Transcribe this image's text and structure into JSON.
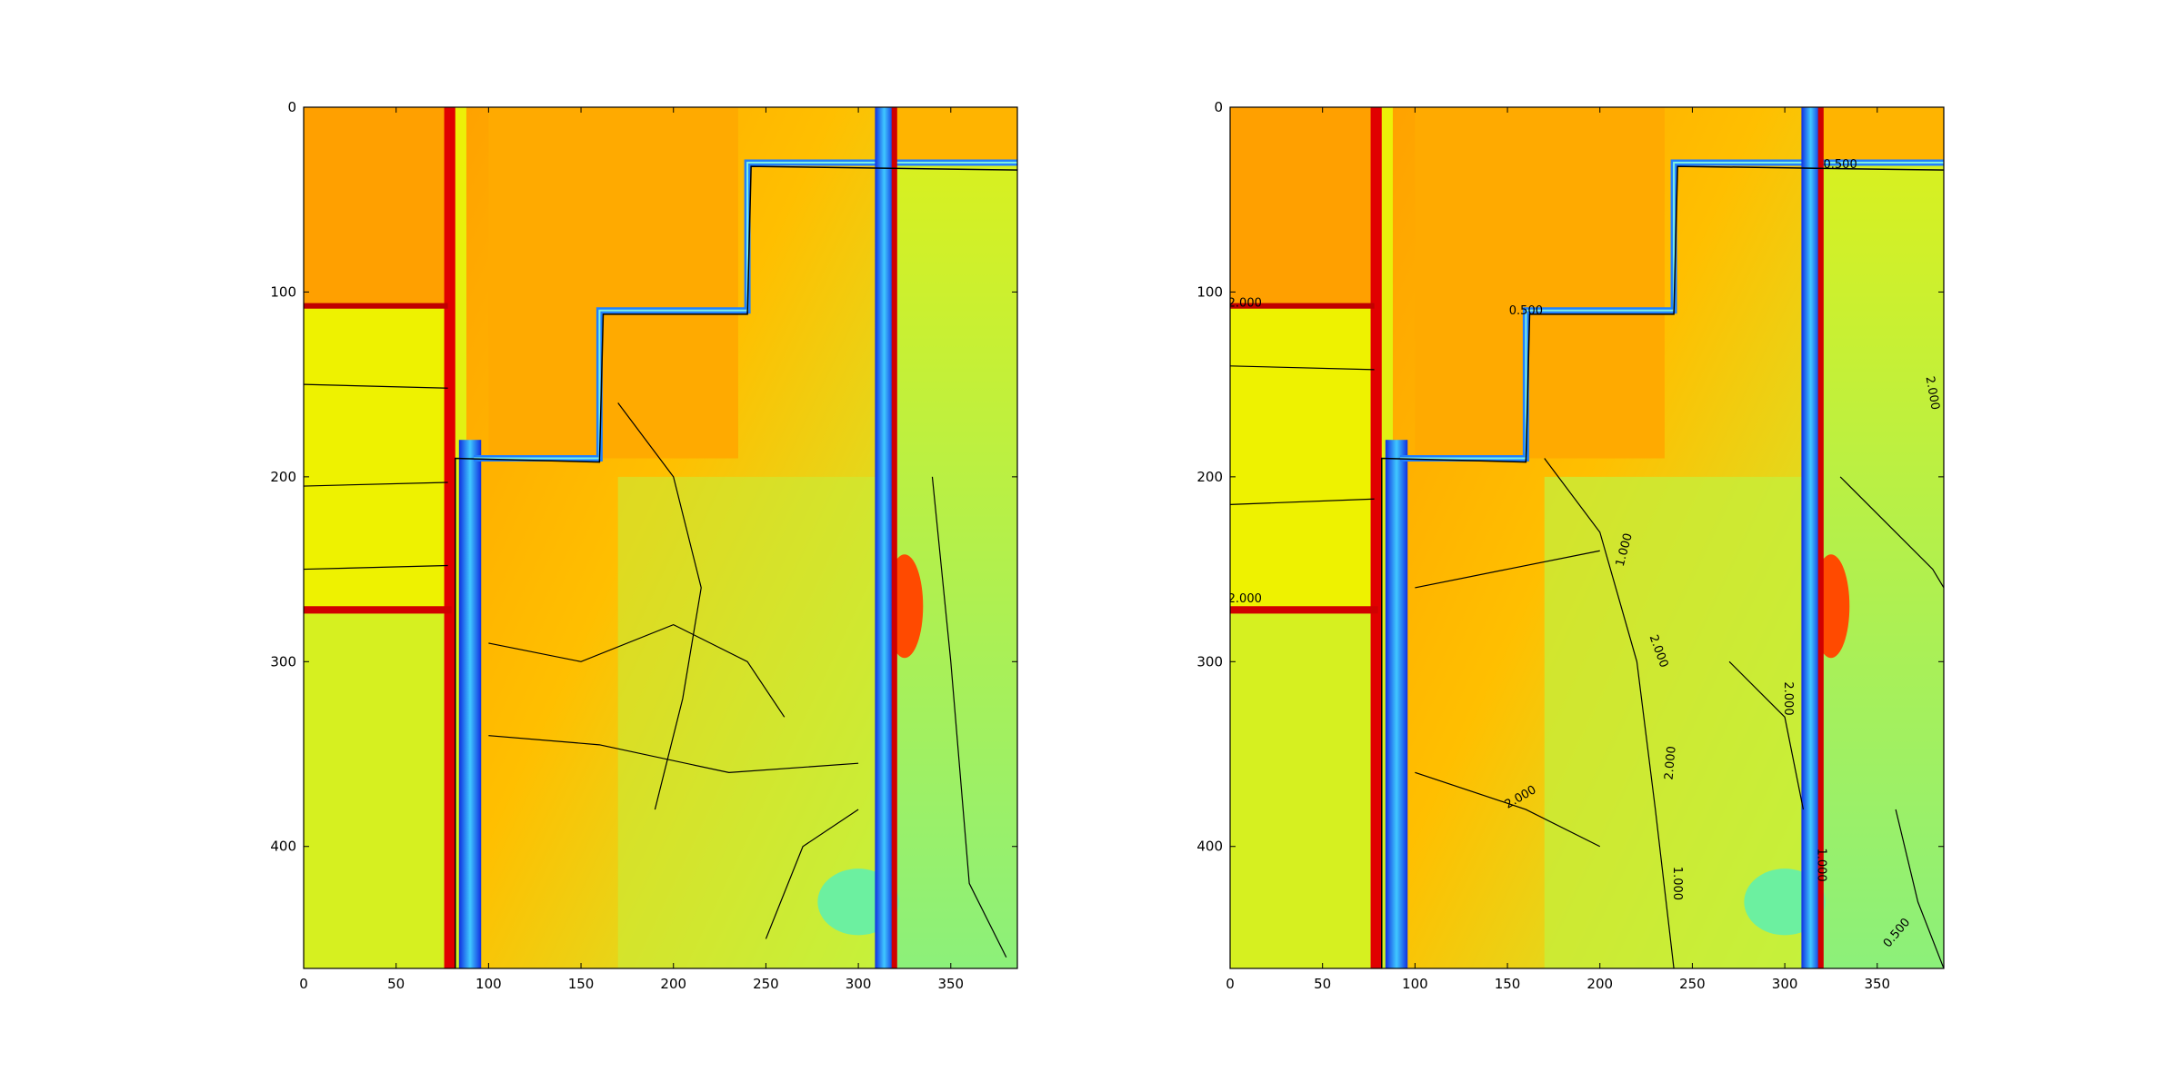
{
  "chart_data": [
    {
      "type": "heatmap",
      "title": "",
      "xlabel": "",
      "ylabel": "",
      "colormap": "jet",
      "xlim": [
        0,
        386
      ],
      "ylim": [
        466,
        0
      ],
      "x_ticks": [
        "0",
        "50",
        "100",
        "150",
        "200",
        "250",
        "300",
        "350"
      ],
      "x_tick_values": [
        0,
        50,
        100,
        150,
        200,
        250,
        300,
        350
      ],
      "y_ticks": [
        "0",
        "100",
        "200",
        "300",
        "400"
      ],
      "y_tick_values": [
        0,
        100,
        200,
        300,
        400
      ],
      "contour_labels": []
    },
    {
      "type": "heatmap",
      "title": "",
      "xlabel": "",
      "ylabel": "",
      "colormap": "jet",
      "xlim": [
        0,
        386
      ],
      "ylim": [
        466,
        0
      ],
      "x_ticks": [
        "0",
        "50",
        "100",
        "150",
        "200",
        "250",
        "300",
        "350"
      ],
      "x_tick_values": [
        0,
        50,
        100,
        150,
        200,
        250,
        300,
        350
      ],
      "y_ticks": [
        "0",
        "100",
        "200",
        "300",
        "400"
      ],
      "y_tick_values": [
        0,
        100,
        200,
        300,
        400
      ],
      "contour_labels": [
        {
          "text": "2.000",
          "x": 8,
          "y": 108,
          "rot": 0
        },
        {
          "text": "2.000",
          "x": 8,
          "y": 268,
          "rot": 0
        },
        {
          "text": "0.500",
          "x": 160,
          "y": 112,
          "rot": 0
        },
        {
          "text": "0.500",
          "x": 330,
          "y": 33,
          "rot": 0
        },
        {
          "text": "1.000",
          "x": 215,
          "y": 240,
          "rot": -75
        },
        {
          "text": "2.000",
          "x": 230,
          "y": 295,
          "rot": 70
        },
        {
          "text": "2.000",
          "x": 240,
          "y": 355,
          "rot": -85
        },
        {
          "text": "2.000",
          "x": 158,
          "y": 375,
          "rot": -30
        },
        {
          "text": "1.000",
          "x": 240,
          "y": 420,
          "rot": 90
        },
        {
          "text": "1.000",
          "x": 318,
          "y": 410,
          "rot": 90
        },
        {
          "text": "0.500",
          "x": 362,
          "y": 448,
          "rot": -50
        },
        {
          "text": "2.000",
          "x": 378,
          "y": 155,
          "rot": 80
        },
        {
          "text": "2.000",
          "x": 300,
          "y": 320,
          "rot": 90
        }
      ]
    }
  ]
}
